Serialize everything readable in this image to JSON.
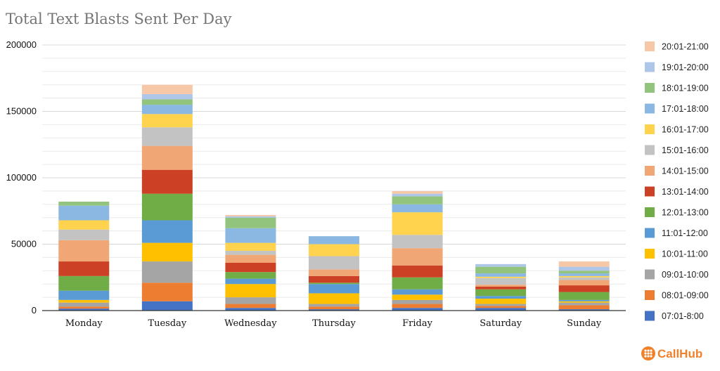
{
  "chart_data": {
    "type": "bar",
    "stacked": true,
    "title": "Total Text Blasts Sent Per Day",
    "xlabel": "",
    "ylabel": "",
    "ylim": [
      0,
      200000
    ],
    "yticks": [
      0,
      50000,
      100000,
      150000,
      200000
    ],
    "ytick_labels": [
      "0",
      "50000",
      "100000",
      "150000",
      "200000"
    ],
    "grid": true,
    "legend_position": "right",
    "categories": [
      "Monday",
      "Tuesday",
      "Wednesday",
      "Thursday",
      "Friday",
      "Saturday",
      "Sunday"
    ],
    "series": [
      {
        "name": "07:01-8:00",
        "color": "#4472c4",
        "values": [
          1500,
          7000,
          2000,
          1000,
          2000,
          2000,
          1000
        ]
      },
      {
        "name": "08:01-09:00",
        "color": "#ed7d31",
        "values": [
          1500,
          14000,
          3000,
          2000,
          3000,
          1500,
          3000
        ]
      },
      {
        "name": "09:01-10:00",
        "color": "#a5a5a5",
        "values": [
          3000,
          16000,
          5000,
          2000,
          3000,
          1500,
          2000
        ]
      },
      {
        "name": "10:01-11:00",
        "color": "#ffc000",
        "values": [
          2000,
          14000,
          10000,
          8000,
          4000,
          4000,
          1000
        ]
      },
      {
        "name": "11:01-12:00",
        "color": "#5b9bd5",
        "values": [
          7000,
          17000,
          4000,
          7000,
          4000,
          2000,
          1000
        ]
      },
      {
        "name": "12:01-13:00",
        "color": "#70ad47",
        "values": [
          11000,
          20000,
          5000,
          1000,
          9000,
          5000,
          6000
        ]
      },
      {
        "name": "13:01-14:00",
        "color": "#cc4125",
        "values": [
          11000,
          18000,
          7000,
          5000,
          9000,
          2000,
          5000
        ]
      },
      {
        "name": "14:01-15:00",
        "color": "#f1a675",
        "values": [
          16000,
          18000,
          6000,
          5000,
          13000,
          1500,
          4000
        ]
      },
      {
        "name": "15:01-16:00",
        "color": "#c3c3c3",
        "values": [
          8000,
          14000,
          3000,
          10000,
          10000,
          5000,
          2000
        ]
      },
      {
        "name": "16:01-17:00",
        "color": "#ffd34e",
        "values": [
          7000,
          10000,
          6000,
          9000,
          17000,
          1000,
          1000
        ]
      },
      {
        "name": "17:01-18:00",
        "color": "#8ab8e2",
        "values": [
          11000,
          7000,
          11000,
          6000,
          6000,
          2500,
          2000
        ]
      },
      {
        "name": "18:01-19:00",
        "color": "#93c47d",
        "values": [
          3000,
          4000,
          8000,
          0,
          6000,
          5000,
          2000
        ]
      },
      {
        "name": "19:01-20:00",
        "color": "#aec6e8",
        "values": [
          0,
          4000,
          1000,
          0,
          2000,
          2000,
          3000
        ]
      },
      {
        "name": "20:01-21:00",
        "color": "#f6c8a8",
        "values": [
          0,
          7000,
          1000,
          0,
          2000,
          0,
          4000
        ]
      }
    ]
  },
  "branding": {
    "name": "CallHub"
  }
}
